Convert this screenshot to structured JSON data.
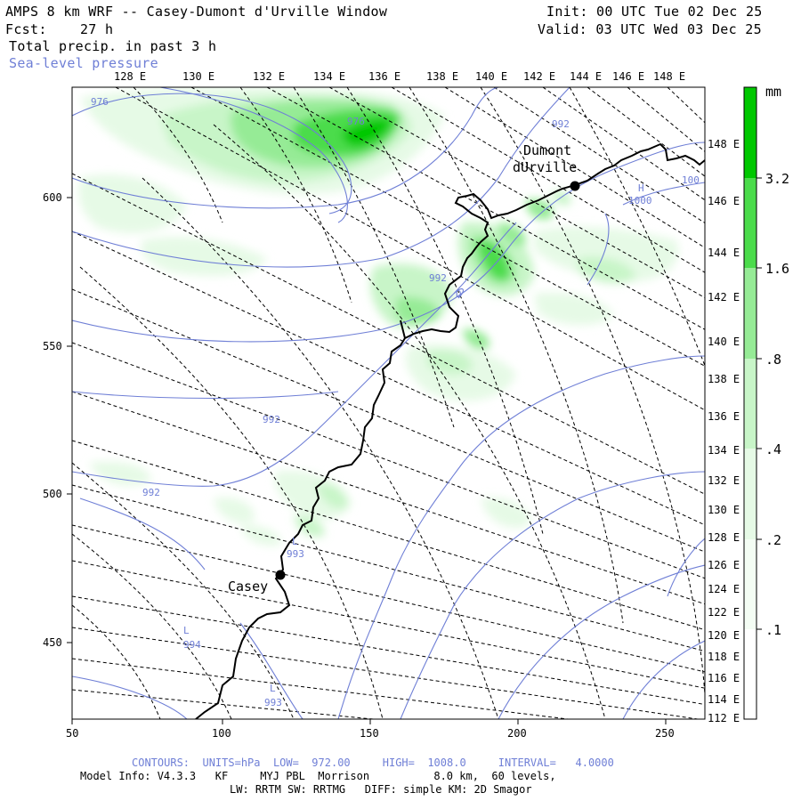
{
  "header": {
    "title": "AMPS 8 km WRF -- Casey-Dumont d'Urville Window",
    "fcst": "Fcst:    27 h",
    "field": "Total precip. in past 3 h",
    "contour_field": "Sea-level pressure",
    "init": "Init: 00 UTC Tue 02 Dec 25",
    "valid": "Valid: 03 UTC Wed 03 Dec 25"
  },
  "top_lon_labels": [
    "128 E",
    "130 E",
    "132 E",
    "134 E",
    "136 E",
    "138 E",
    "140 E",
    "142 E",
    "144 E",
    "146 E",
    "148 E"
  ],
  "right_lon_labels": [
    "148 E",
    "146 E",
    "144 E",
    "142 E",
    "140 E",
    "138 E",
    "136 E",
    "134 E",
    "132 E",
    "130 E",
    "128 E",
    "126 E",
    "124 E",
    "122 E",
    "120 E",
    "118 E",
    "116 E",
    "114 E",
    "112 E"
  ],
  "x_axis_labels": [
    "50",
    "100",
    "150",
    "200",
    "250"
  ],
  "y_axis_labels": [
    "600",
    "550",
    "500",
    "450"
  ],
  "places": [
    {
      "name": "Dumont",
      "line2": "dUrville"
    },
    {
      "name": "Casey"
    }
  ],
  "isobar_labels": [
    "976",
    "976",
    "992",
    "992",
    "992",
    "992",
    "993",
    "993",
    "994",
    "1000",
    "100",
    "H",
    "L",
    "L",
    "L",
    "D"
  ],
  "colorbar": {
    "unit": "mm",
    "levels": [
      ".1",
      ".2",
      ".4",
      ".8",
      "1.6",
      "3.2"
    ],
    "colors": [
      "#ffffff",
      "#e6fae6",
      "#c8f5c8",
      "#96eb96",
      "#4bdc4b",
      "#00c800"
    ]
  },
  "footer": {
    "contours": "CONTOURS:  UNITS=hPa  LOW=  972.00     HIGH=  1008.0     INTERVAL=   4.0000",
    "model_info": "Model Info: V4.3.3   KF     MYJ PBL  Morrison          8.0 km,  60 levels,",
    "model_info2": "LW: RRTM SW: RRTMG   DIFF: simple KM: 2D Smagor"
  },
  "colors": {
    "isobar": "#6f7fd6",
    "coast": "#000000",
    "grid": "#000000"
  }
}
